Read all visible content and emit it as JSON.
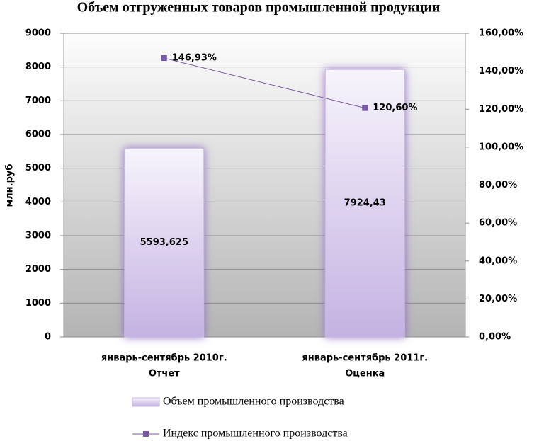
{
  "chart_data": {
    "type": "bar_line",
    "title": "Объем отгруженных товаров промышленной продукции",
    "ylabel": "млн.руб",
    "categories": [
      [
        "январь-сентябрь 2010г.",
        "Отчет"
      ],
      [
        "январь-сентябрь 2011г.",
        "Оценка"
      ]
    ],
    "series": [
      {
        "name": "Объем промышленного производства",
        "type": "bar",
        "color": "#c8b8e6",
        "values": [
          5593.625,
          7924.43
        ],
        "value_labels": [
          "5593,625",
          "7924,43"
        ]
      },
      {
        "name": "Индекс промышленного производства",
        "type": "line",
        "axis": "y2",
        "color": "#7857a8",
        "values": [
          146.93,
          120.6
        ],
        "value_labels": [
          "146,93%",
          "120,60%"
        ]
      }
    ],
    "ylim": [
      0,
      9000
    ],
    "yticks": [
      0,
      1000,
      2000,
      3000,
      4000,
      5000,
      6000,
      7000,
      8000,
      9000
    ],
    "y2lim": [
      0,
      160
    ],
    "y2ticks": [
      {
        "value": 0,
        "label": "0,00%"
      },
      {
        "value": 20,
        "label": "20,00%"
      },
      {
        "value": 40,
        "label": "40,00%"
      },
      {
        "value": 60,
        "label": "60,00%"
      },
      {
        "value": 80,
        "label": "80,00%"
      },
      {
        "value": 100,
        "label": "100,00%"
      },
      {
        "value": 120,
        "label": "120,00%"
      },
      {
        "value": 140,
        "label": "140,00%"
      },
      {
        "value": 160,
        "label": "160,00%"
      }
    ],
    "grid": true,
    "legend": "bottom"
  }
}
